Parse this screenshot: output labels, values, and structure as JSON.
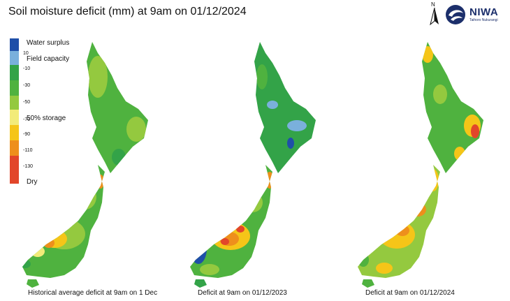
{
  "title": "Soil moisture deficit (mm) at 9am on 01/12/2024",
  "north_label": "N",
  "logo": {
    "name": "NIWA",
    "tagline": "Taihoro Nukurangi"
  },
  "legend": {
    "labels": {
      "water_surplus": "Water surplus",
      "field_capacity": "Field capacity",
      "storage": "50% storage",
      "dry": "Dry"
    },
    "ticks": [
      "10",
      "-10",
      "-30",
      "-50",
      "-70",
      "-90",
      "-110",
      "-130"
    ],
    "colors": [
      "#1f4fa8",
      "#7ab0dc",
      "#33a348",
      "#4fb23f",
      "#94c93f",
      "#f2eb79",
      "#f5c518",
      "#ee8f1c",
      "#e2462a"
    ]
  },
  "maps": [
    {
      "caption": "Historical average deficit at 9am on 1 Dec"
    },
    {
      "caption": "Deficit at 9am on 01/12/2023"
    },
    {
      "caption": "Deficit at 9am on 01/12/2024"
    }
  ]
}
